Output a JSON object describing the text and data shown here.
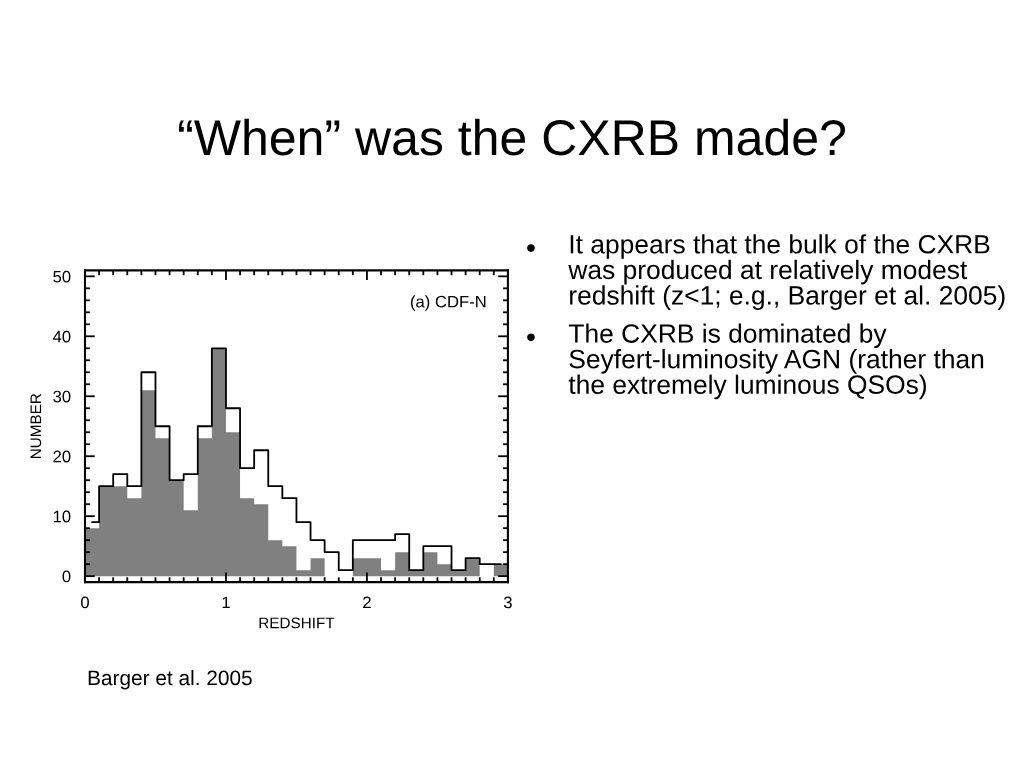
{
  "chart_data": {
    "type": "histogram",
    "title": "“When” was the CXRB made?",
    "xlabel": "REDSHIFT",
    "ylabel": "NUMBER",
    "bins": [
      0,
      0.1,
      0.2,
      0.3,
      0.4,
      0.5,
      0.6,
      0.7,
      0.8,
      0.9,
      1.0,
      1.1,
      1.2,
      1.3,
      1.4,
      1.5,
      1.6,
      1.7,
      1.8,
      1.9,
      2.0,
      2.1,
      2.2,
      2.3,
      2.4,
      2.5,
      2.6,
      2.7,
      2.8,
      2.9,
      3.0
    ],
    "series": [
      {
        "color": "#808080",
        "values": [
          8,
          15,
          15,
          13,
          31,
          23,
          16,
          11,
          23,
          38,
          24,
          13,
          12,
          6,
          5,
          1,
          3,
          0,
          0,
          3,
          3,
          1,
          4,
          1,
          4,
          2,
          1,
          3,
          0,
          2
        ]
      },
      {
        "type": "step",
        "color": "#000000",
        "x": [
          0.05,
          0.15,
          0.25,
          0.35,
          0.45,
          0.55,
          0.65,
          0.75,
          0.85,
          0.95,
          1.05,
          1.15,
          1.25,
          1.35,
          1.45,
          1.55,
          1.65,
          1.75,
          1.85,
          1.95,
          2.05,
          2.15,
          2.25,
          2.35,
          2.45,
          2.55,
          2.65,
          2.75,
          2.85,
          2.95
        ],
        "values": [
          9,
          15,
          17,
          15,
          34,
          25,
          16,
          17,
          25,
          38,
          28,
          18,
          21,
          15,
          13,
          9,
          6,
          4,
          1,
          6,
          6,
          6,
          7,
          1,
          5,
          5,
          1,
          3,
          2,
          2
        ]
      }
    ],
    "xlim": [
      0,
      3
    ],
    "ylim": [
      -1,
      51
    ],
    "xticks": [
      0,
      1,
      2,
      3,
      {
        "value": 0.1,
        "label": null
      },
      {
        "value": 0.2,
        "label": null
      },
      {
        "value": 0.3,
        "label": null
      },
      {
        "value": 0.4,
        "label": null
      },
      {
        "value": 0.5,
        "label": null
      },
      {
        "value": 0.6,
        "label": null
      },
      {
        "value": 0.7,
        "label": null
      },
      {
        "value": 0.8,
        "label": null
      },
      {
        "value": 0.9,
        "label": null
      },
      {
        "value": 1.1,
        "label": null
      },
      {
        "value": 1.2,
        "label": null
      },
      {
        "value": 1.3,
        "label": null
      },
      {
        "value": 1.4,
        "label": null
      },
      {
        "value": 1.5,
        "label": null
      },
      {
        "value": 1.6,
        "label": null
      },
      {
        "value": 1.7,
        "label": null
      },
      {
        "value": 1.8,
        "label": null
      },
      {
        "value": 1.9,
        "label": null
      },
      {
        "value": 2.1,
        "label": null
      },
      {
        "value": 2.2,
        "label": null
      },
      {
        "value": 2.3,
        "label": null
      },
      {
        "value": 2.4,
        "label": null
      },
      {
        "value": 2.5,
        "label": null
      },
      {
        "value": 2.6,
        "label": null
      },
      {
        "value": 2.7,
        "label": null
      },
      {
        "value": 2.8,
        "label": null
      },
      {
        "value": 2.9,
        "label": null
      }
    ],
    "yticks": [
      0,
      10,
      20,
      30,
      40,
      50,
      {
        "value": 2,
        "label": null
      },
      {
        "value": 4,
        "label": null
      },
      {
        "value": 6,
        "label": null
      },
      {
        "value": 8,
        "label": null
      },
      {
        "value": 12,
        "label": null
      },
      {
        "value": 14,
        "label": null
      },
      {
        "value": 16,
        "label": null
      },
      {
        "value": 18,
        "label": null
      },
      {
        "value": 22,
        "label": null
      },
      {
        "value": 24,
        "label": null
      },
      {
        "value": 26,
        "label": null
      },
      {
        "value": 28,
        "label": null
      },
      {
        "value": 32,
        "label": null
      },
      {
        "value": 34,
        "label": null
      },
      {
        "value": 36,
        "label": null
      },
      {
        "value": 38,
        "label": null
      },
      {
        "value": 42,
        "label": null
      },
      {
        "value": 44,
        "label": null
      },
      {
        "value": 46,
        "label": null
      },
      {
        "value": 48,
        "label": null
      }
    ],
    "grid": false,
    "legend": false,
    "annotations": [
      "(a) CDF-N",
      "It appears that the bulk of the CXRB was produced at relatively modest redshift (z<1; e.g., Barger et al. 2005)",
      "The CXRB is dominated by Seyfert-luminosity AGN (rather than the extremely luminous QSOs)",
      "Barger et al. 2005"
    ]
  }
}
